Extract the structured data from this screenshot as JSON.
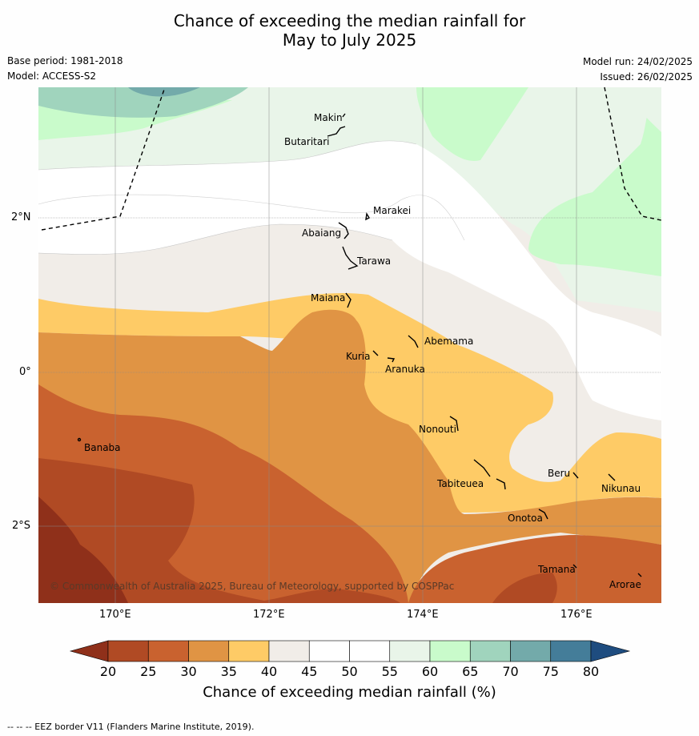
{
  "title_line1": "Chance of exceeding the median rainfall for",
  "title_line2": "May to July 2025",
  "meta": {
    "base_period": "Base period: 1981-2018",
    "model": "Model: ACCESS-S2",
    "model_run": "Model run: 24/02/2025",
    "issued": "Issued: 26/02/2025"
  },
  "axes": {
    "lat_labels": [
      "2°N",
      "0°",
      "2°S"
    ],
    "lon_labels": [
      "170°E",
      "172°E",
      "174°E",
      "176°E"
    ]
  },
  "islands": [
    "Makin",
    "Butaritari",
    "Marakei",
    "Abaiang",
    "Tarawa",
    "Maiana",
    "Abemama",
    "Kuria",
    "Aranuka",
    "Nonouti",
    "Banaba",
    "Tabiteuea",
    "Beru",
    "Nikunau",
    "Onotoa",
    "Tamana",
    "Arorae"
  ],
  "copyright": "© Commonwealth of Australia 2025, Bureau of Meteorology, supported by COSPPac",
  "colorbar": {
    "ticks": [
      "20",
      "25",
      "30",
      "35",
      "40",
      "45",
      "50",
      "55",
      "60",
      "65",
      "70",
      "75",
      "80"
    ],
    "colors": [
      "#8f301a",
      "#b04a24",
      "#c9622f",
      "#e09444",
      "#fecb66",
      "#f1ede8",
      "#ffffff",
      "#ffffff",
      "#e9f5e9",
      "#c9fbcb",
      "#a0d4bd",
      "#73aaaa",
      "#447d99"
    ],
    "under_color": "#8f301a",
    "over_color": "#1e4c7f",
    "label": "Chance of exceeding median rainfall (%)"
  },
  "footer": "--  --  -- EEZ border V11 (Flanders Marine Institute, 2019)."
}
